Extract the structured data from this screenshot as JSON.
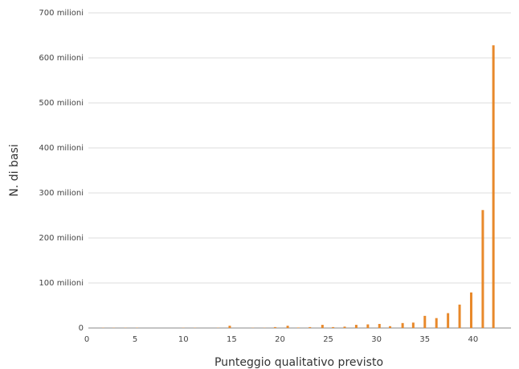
{
  "chart_data": {
    "type": "bar",
    "xlabel": "Punteggio qualitativo previsto",
    "ylabel": "N. di basi",
    "x": [
      1.7,
      2.8,
      4.0,
      5.2,
      10.0,
      11.2,
      13.6,
      14.8,
      17.2,
      18.4,
      19.5,
      20.8,
      21.9,
      23.1,
      24.4,
      25.5,
      26.7,
      27.9,
      29.1,
      30.3,
      31.4,
      32.7,
      33.8,
      35.0,
      36.2,
      37.4,
      38.6,
      39.8,
      41.0,
      42.1
    ],
    "values": [
      500000,
      500000,
      500000,
      500000,
      500000,
      500000,
      500000,
      5000000,
      500000,
      500000,
      2000000,
      5000000,
      1000000,
      2000000,
      7000000,
      2000000,
      3000000,
      7000000,
      8000000,
      9000000,
      4000000,
      11000000,
      12000000,
      27000000,
      22000000,
      33000000,
      52000000,
      79000000,
      262000000,
      628000000
    ],
    "color": "#e8892b",
    "xlim": [
      0,
      44.5
    ],
    "xticks": [
      0,
      5,
      10,
      15,
      20,
      25,
      30,
      35,
      40
    ],
    "ylim": [
      0,
      700000000
    ],
    "yticks": [
      0,
      {
        "value": 100000000,
        "label": "100 milioni"
      },
      {
        "value": 200000000,
        "label": "200 milioni"
      },
      {
        "value": 300000000,
        "label": "300 milioni"
      },
      {
        "value": 400000000,
        "label": "400 milioni"
      },
      {
        "value": 500000000,
        "label": "500 milioni"
      },
      {
        "value": 600000000,
        "label": "600 milioni"
      },
      {
        "value": 700000000,
        "label": "700 milioni"
      }
    ],
    "grid": true
  }
}
